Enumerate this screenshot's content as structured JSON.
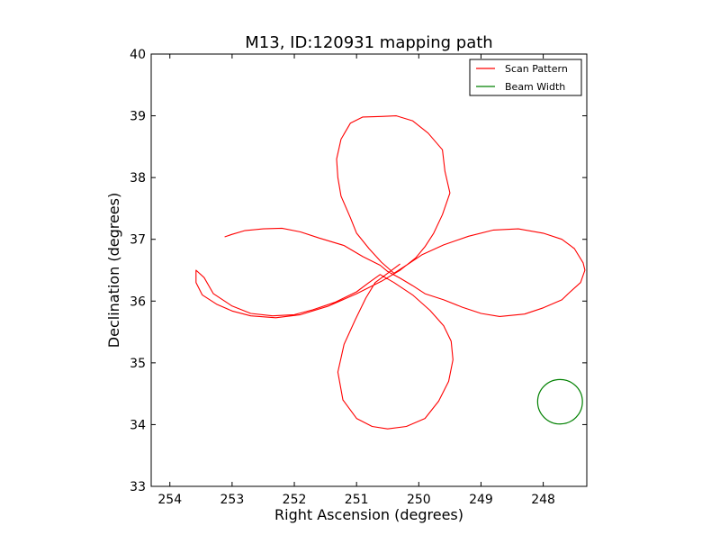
{
  "chart_data": {
    "type": "line",
    "title": "M13, ID:120931 mapping path",
    "xlabel": "Right Ascension (degrees)",
    "ylabel": "Declination (degrees)",
    "xlim": [
      254.3,
      247.3
    ],
    "ylim": [
      33,
      40
    ],
    "xticks": [
      254,
      253,
      252,
      251,
      250,
      249,
      248
    ],
    "yticks": [
      33,
      34,
      35,
      36,
      37,
      38,
      39,
      40
    ],
    "grid": false,
    "legend_position": "top-right",
    "series": [
      {
        "name": "Scan Pattern",
        "color": "#ff0000",
        "x": [
          253.12,
          253.0,
          252.8,
          252.5,
          252.2,
          251.9,
          251.6,
          251.2,
          250.9,
          250.62,
          250.5,
          250.3,
          250.1,
          249.9,
          249.6,
          249.3,
          249.0,
          248.7,
          248.3,
          248.0,
          247.7,
          247.6,
          247.4,
          247.33,
          247.36,
          247.5,
          247.7,
          248.0,
          248.4,
          248.8,
          249.2,
          249.6,
          249.95,
          250.2,
          250.4,
          250.6,
          250.8,
          251.0,
          251.1,
          251.25,
          251.3,
          251.32,
          251.25,
          251.1,
          250.9,
          250.6,
          250.36,
          250.1,
          249.85,
          249.62,
          249.58,
          249.5,
          249.62,
          249.76,
          249.9,
          250.05,
          250.3,
          250.6,
          251.0,
          251.45,
          251.9,
          252.3,
          252.7,
          253.0,
          253.25,
          253.48,
          253.58,
          253.58,
          253.45,
          253.3,
          253.0,
          252.7,
          252.35,
          252.0,
          251.7,
          251.35,
          251.0,
          250.8,
          250.62,
          250.4,
          250.1,
          249.82,
          249.6,
          249.48,
          249.45,
          249.52,
          249.68,
          249.9,
          250.2,
          250.5,
          250.75,
          251.0,
          251.22,
          251.3,
          251.2,
          251.02,
          250.85,
          250.7,
          250.5,
          250.3
        ],
        "y": [
          37.04,
          37.08,
          37.14,
          37.17,
          37.18,
          37.12,
          37.02,
          36.9,
          36.72,
          36.58,
          36.48,
          36.37,
          36.25,
          36.12,
          36.02,
          35.9,
          35.8,
          35.75,
          35.79,
          35.89,
          36.02,
          36.12,
          36.3,
          36.5,
          36.62,
          36.85,
          37.0,
          37.1,
          37.17,
          37.15,
          37.05,
          36.91,
          36.75,
          36.58,
          36.45,
          36.63,
          36.85,
          37.1,
          37.35,
          37.7,
          38.0,
          38.3,
          38.62,
          38.88,
          38.98,
          38.99,
          39.0,
          38.92,
          38.72,
          38.45,
          38.1,
          37.75,
          37.4,
          37.1,
          36.88,
          36.7,
          36.5,
          36.32,
          36.12,
          35.92,
          35.78,
          35.73,
          35.76,
          35.84,
          35.95,
          36.1,
          36.3,
          36.5,
          36.38,
          36.12,
          35.92,
          35.8,
          35.76,
          35.78,
          35.86,
          35.98,
          36.15,
          36.3,
          36.43,
          36.3,
          36.1,
          35.85,
          35.6,
          35.35,
          35.05,
          34.7,
          34.38,
          34.1,
          33.97,
          33.93,
          33.97,
          34.1,
          34.4,
          34.85,
          35.3,
          35.7,
          36.05,
          36.3,
          36.45,
          36.6
        ]
      },
      {
        "name": "Beam Width",
        "color": "#008000",
        "shape": "circle",
        "center": [
          247.73,
          34.37
        ],
        "radius": 0.36
      }
    ]
  }
}
